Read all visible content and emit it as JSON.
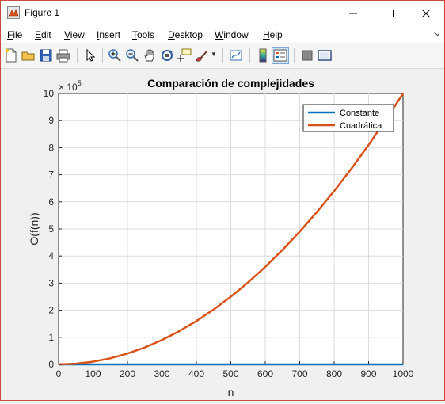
{
  "window": {
    "title": "Figure 1",
    "minimize_icon": "minimize-icon",
    "maximize_icon": "maximize-icon",
    "close_icon": "close-icon"
  },
  "menu": {
    "items": [
      "File",
      "Edit",
      "View",
      "Insert",
      "Tools",
      "Desktop",
      "Window",
      "Help"
    ]
  },
  "toolbar": {
    "icons": [
      "new-figure-icon",
      "open-file-icon",
      "save-icon",
      "print-icon",
      "edit-plot-arrow-icon",
      "zoom-in-icon",
      "zoom-out-icon",
      "pan-hand-icon",
      "rotate-3d-icon",
      "data-cursor-icon",
      "brush-icon",
      "link-plot-icon",
      "colorbar-icon",
      "legend-icon",
      "hide-plot-tools-icon",
      "show-plot-tools-icon"
    ]
  },
  "chart_data": {
    "type": "line",
    "title": "Comparación de complejidades",
    "xlabel": "n",
    "ylabel": "O(f(n))",
    "xlim": [
      0,
      1000
    ],
    "ylim": [
      0,
      1000000
    ],
    "y_exponent_label": "× 10",
    "y_exponent_power": "5",
    "xticks": [
      "0",
      "100",
      "200",
      "300",
      "400",
      "500",
      "600",
      "700",
      "800",
      "900",
      "1000"
    ],
    "yticks": [
      "0",
      "1",
      "2",
      "3",
      "4",
      "5",
      "6",
      "7",
      "8",
      "9",
      "10"
    ],
    "grid": true,
    "legend_position": "top-right",
    "x": [
      0,
      50,
      100,
      150,
      200,
      250,
      300,
      350,
      400,
      450,
      500,
      550,
      600,
      650,
      700,
      750,
      800,
      850,
      900,
      950,
      1000
    ],
    "series": [
      {
        "name": "Constante",
        "color": "#0072BD",
        "values": [
          1,
          1,
          1,
          1,
          1,
          1,
          1,
          1,
          1,
          1,
          1,
          1,
          1,
          1,
          1,
          1,
          1,
          1,
          1,
          1,
          1
        ]
      },
      {
        "name": "Cuadrática",
        "color": "#D95319",
        "values": [
          0,
          2500,
          10000,
          22500,
          40000,
          62500,
          90000,
          122500,
          160000,
          202500,
          250000,
          302500,
          360000,
          422500,
          490000,
          562500,
          640000,
          722500,
          810000,
          902500,
          1000000
        ]
      }
    ]
  }
}
